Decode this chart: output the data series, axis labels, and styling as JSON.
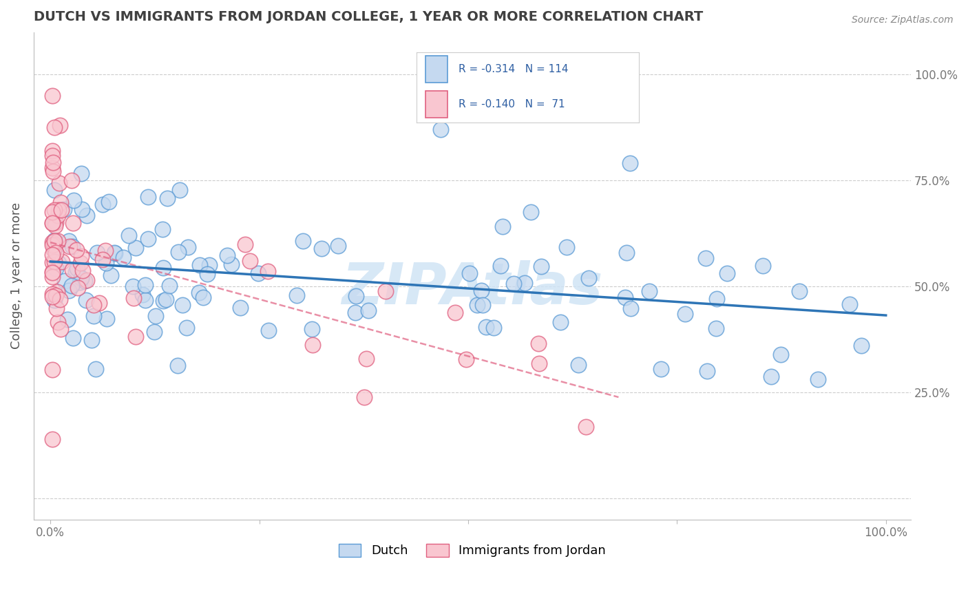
{
  "title": "DUTCH VS IMMIGRANTS FROM JORDAN COLLEGE, 1 YEAR OR MORE CORRELATION CHART",
  "source": "Source: ZipAtlas.com",
  "ylabel": "College, 1 year or more",
  "dutch_R": -0.314,
  "dutch_N": 114,
  "jordan_R": -0.14,
  "jordan_N": 71,
  "dutch_fill_color": "#c5d9f0",
  "dutch_edge_color": "#5b9bd5",
  "jordan_fill_color": "#f9c6d0",
  "jordan_edge_color": "#e06080",
  "dutch_line_color": "#2e75b6",
  "jordan_line_color": "#e06080",
  "background_color": "#ffffff",
  "grid_color": "#cccccc",
  "watermark_text": "ZIPAtlas",
  "watermark_color": "#d0e4f5",
  "legend_text_color": "#2e5fa3",
  "title_color": "#404040",
  "axis_label_color": "#555555",
  "tick_color": "#777777",
  "source_color": "#888888"
}
